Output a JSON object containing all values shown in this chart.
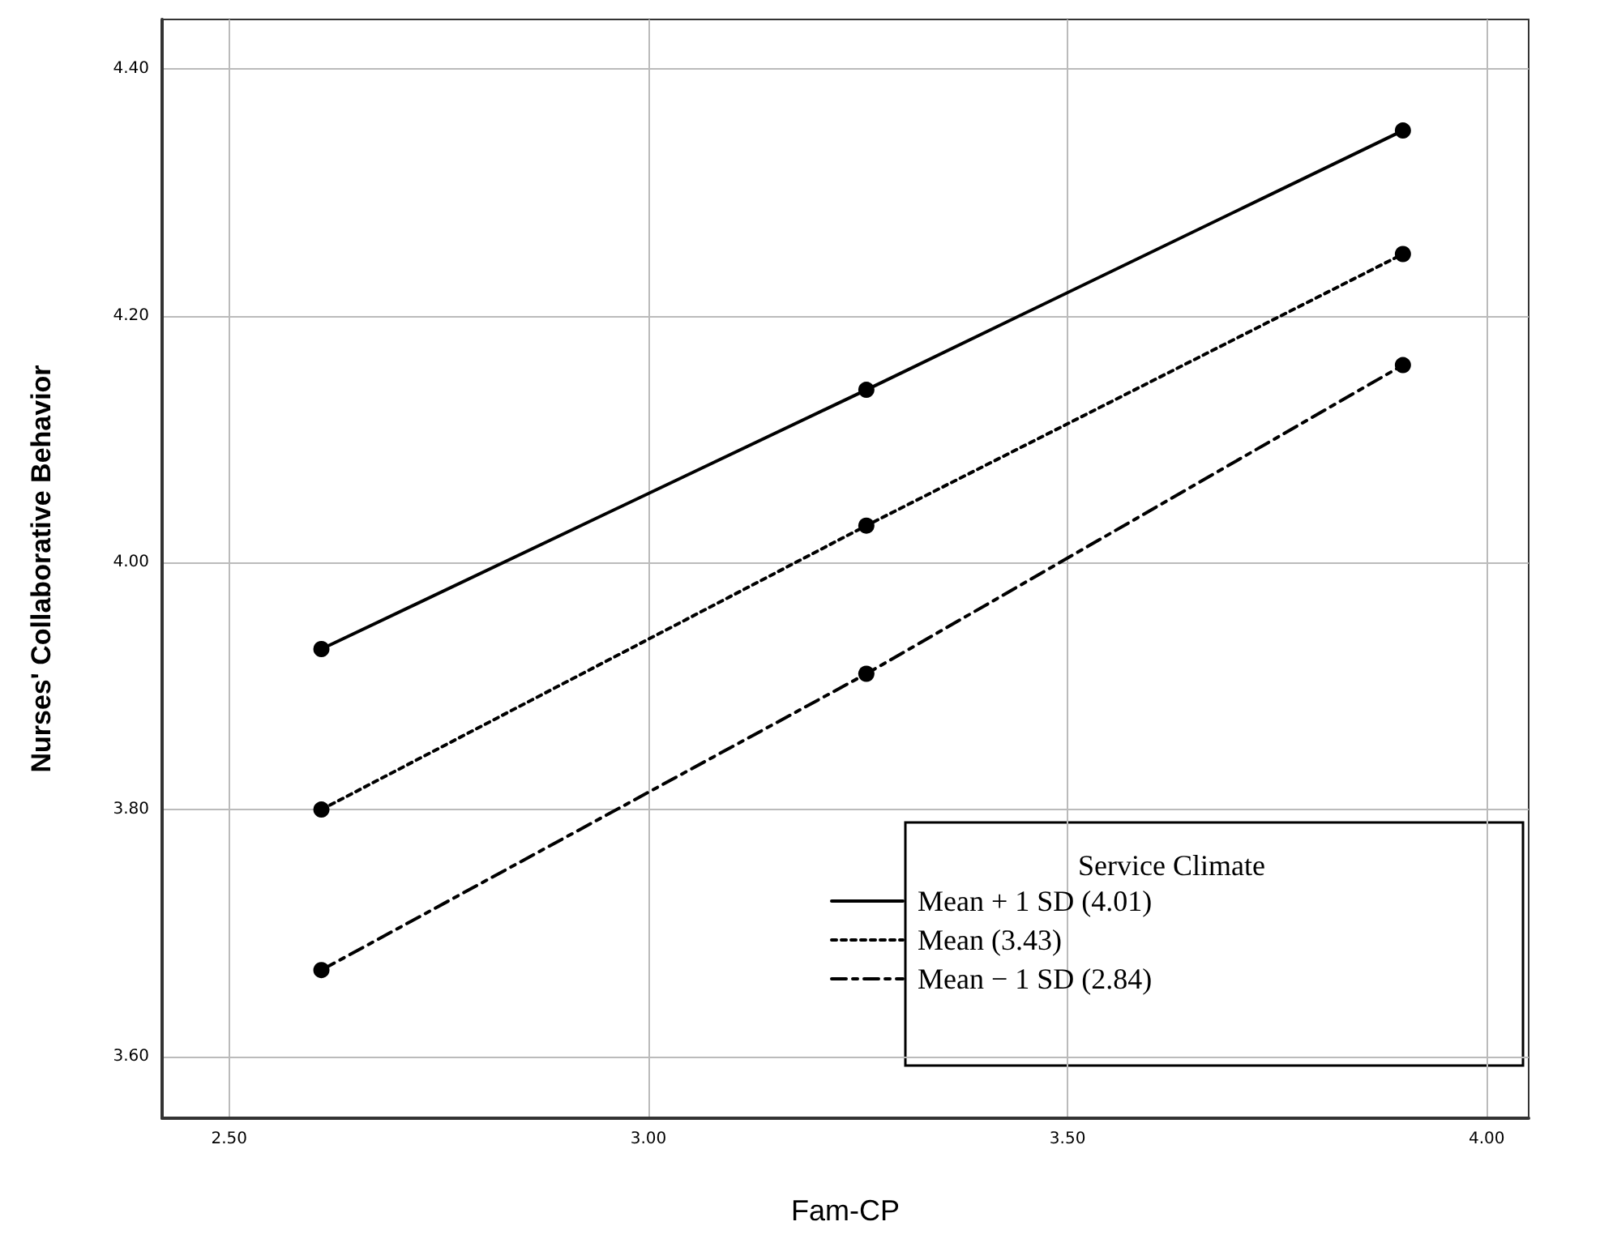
{
  "chart_data": {
    "type": "line",
    "xlabel": "Fam-CP",
    "ylabel": "Nurses' Collaborative Behavior",
    "legend_title": "Service Climate",
    "x": [
      2.61,
      3.26,
      3.9
    ],
    "series": [
      {
        "name": "Mean + 1 SD (4.01)",
        "color": "#000000",
        "line_style": "solid",
        "values": [
          3.93,
          4.14,
          4.35
        ]
      },
      {
        "name": "Mean (3.43)",
        "color": "#000000",
        "line_style": "dotted",
        "values": [
          3.8,
          4.03,
          4.25
        ]
      },
      {
        "name": "Mean − 1 SD (2.84)",
        "color": "#000000",
        "line_style": "dashed",
        "values": [
          3.67,
          3.91,
          4.16
        ]
      }
    ],
    "xlim": [
      2.42,
      4.05
    ],
    "xticks": [
      {
        "value": 2.5,
        "label": "2.50"
      },
      {
        "value": 3,
        "label": "3.00"
      },
      {
        "value": 3.5,
        "label": "3.50"
      },
      {
        "value": 4,
        "label": "4.00"
      }
    ],
    "ylim": [
      3.55,
      4.44
    ],
    "yticks": [
      {
        "value": 3.6,
        "label": "3.60"
      },
      {
        "value": 3.8,
        "label": "3.80"
      },
      {
        "value": 4,
        "label": "4.00"
      },
      {
        "value": 4.2,
        "label": "4.20"
      },
      {
        "value": 4.4,
        "label": "4.40"
      }
    ],
    "grid": true,
    "legend": "bottom right",
    "marker": "circle"
  }
}
